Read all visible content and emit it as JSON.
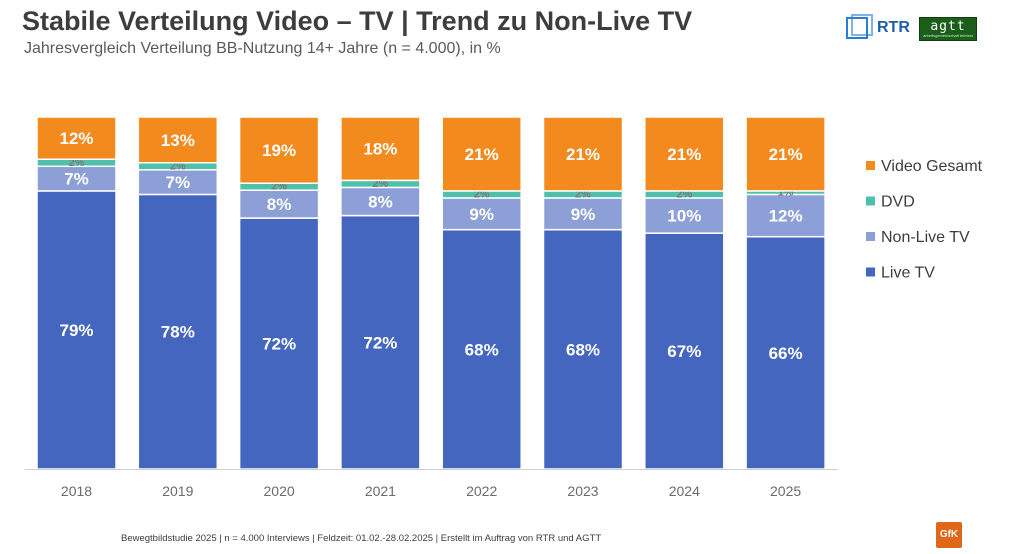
{
  "header": {
    "title": "Stabile Verteilung Video – TV | Trend zu Non-Live TV",
    "subtitle": "Jahresvergleich Verteilung BB-Nutzung 14+ Jahre (n = 4.000), in %"
  },
  "logos": {
    "rtr": "RTR",
    "agtt": "agtt",
    "agtt_sub": "arbeitsgemeinschaft teletest",
    "gfk": "GfK"
  },
  "footer": "Bewegtbildstudie 2025 | n = 4.000 Interviews | Feldzeit: 01.02.-28.02.2025 | Erstellt im Auftrag von RTR und AGTT",
  "colors": {
    "live": "#4466bf",
    "nonlive": "#8c9fd6",
    "dvd": "#4fc0aa",
    "video": "#f28a1e"
  },
  "chart_data": {
    "type": "bar",
    "stacked": true,
    "percent": true,
    "categories": [
      "2018",
      "2019",
      "2020",
      "2021",
      "2022",
      "2023",
      "2024",
      "2025"
    ],
    "series": [
      {
        "name": "Live TV",
        "values": [
          79,
          78,
          72,
          72,
          68,
          68,
          67,
          66
        ],
        "labels": [
          "79%",
          "78%",
          "72%",
          "72%",
          "68%",
          "68%",
          "67%",
          "66%"
        ]
      },
      {
        "name": "Non-Live TV",
        "values": [
          7,
          7,
          8,
          8,
          9,
          9,
          10,
          12
        ],
        "labels": [
          "7%",
          "7%",
          "8%",
          "8%",
          "9%",
          "9%",
          "10%",
          "12%"
        ]
      },
      {
        "name": "DVD",
        "values": [
          2,
          2,
          2,
          2,
          2,
          2,
          2,
          1
        ],
        "labels": [
          "2%",
          "2%",
          "2%",
          "2%",
          "2%",
          "2%",
          "2%",
          "1%"
        ]
      },
      {
        "name": "Video Gesamt",
        "values": [
          12,
          13,
          19,
          18,
          21,
          21,
          21,
          21
        ],
        "labels": [
          "12%",
          "13%",
          "19%",
          "18%",
          "21%",
          "21%",
          "21%",
          "21%"
        ]
      }
    ],
    "legend": [
      "Video Gesamt",
      "DVD",
      "Non-Live TV",
      "Live TV"
    ],
    "legend_position": "right",
    "ylim": [
      0,
      100
    ],
    "grid": false
  }
}
